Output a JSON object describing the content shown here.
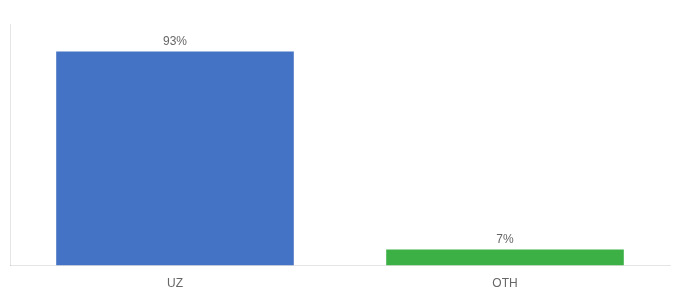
{
  "chart_data": {
    "type": "bar",
    "categories": [
      "UZ",
      "OTH"
    ],
    "values": [
      93,
      7
    ],
    "value_labels": [
      "93%",
      "7%"
    ],
    "colors": [
      "#4472c4",
      "#3cb044"
    ],
    "ylim": [
      0,
      105
    ],
    "data_labels": true,
    "tick_labels": "x",
    "grid": false
  }
}
